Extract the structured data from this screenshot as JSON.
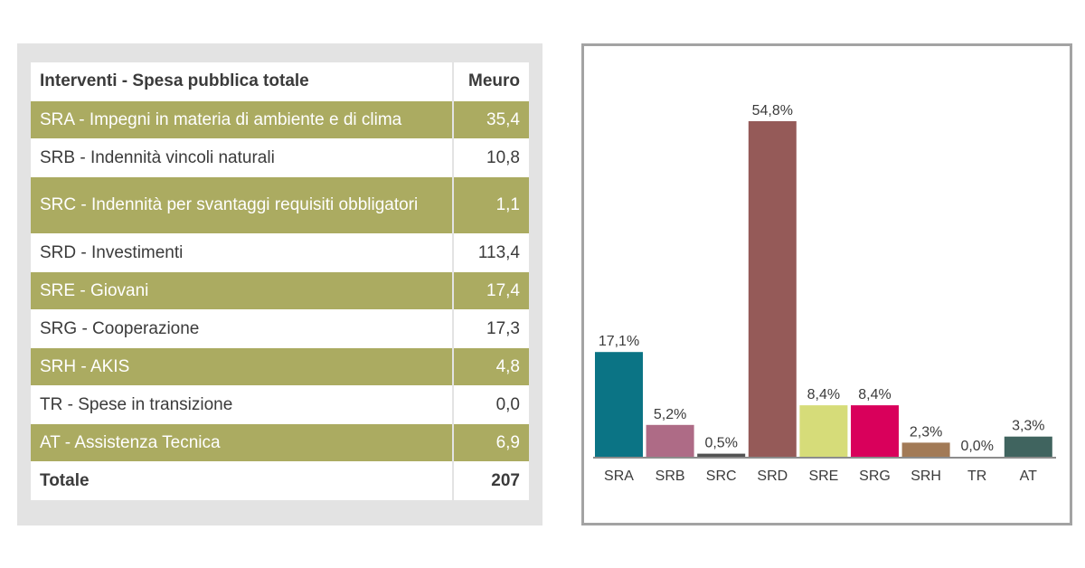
{
  "table": {
    "header": {
      "label": "Interventi - Spesa pubblica totale",
      "unit": "Meuro"
    },
    "rows": [
      {
        "label": "SRA - Impegni in materia di ambiente e di clima",
        "value": "35,4",
        "style": "shade"
      },
      {
        "label": "SRB - Indennità vincoli naturali",
        "value": "10,8",
        "style": "plain"
      },
      {
        "label": "SRC - Indennità per svantaggi requisiti obbligatori",
        "value": "1,1",
        "style": "shade"
      },
      {
        "label": "SRD - Investimenti",
        "value": "113,4",
        "style": "plain"
      },
      {
        "label": "SRE - Giovani",
        "value": "17,4",
        "style": "shade"
      },
      {
        "label": "SRG - Cooperazione",
        "value": "17,3",
        "style": "plain"
      },
      {
        "label": "SRH - AKIS",
        "value": "4,8",
        "style": "shade"
      },
      {
        "label": "TR - Spese in transizione",
        "value": "0,0",
        "style": "plain"
      },
      {
        "label": "AT - Assistenza Tecnica",
        "value": "6,9",
        "style": "shade"
      }
    ],
    "total": {
      "label": "Totale",
      "value": "207"
    },
    "colors": {
      "shade": "#abab61",
      "panel": "#e3e3e3"
    }
  },
  "chart_data": {
    "type": "bar",
    "categories": [
      "SRA",
      "SRB",
      "SRC",
      "SRD",
      "SRE",
      "SRG",
      "SRH",
      "TR",
      "AT"
    ],
    "values": [
      17.1,
      5.2,
      0.5,
      54.8,
      8.4,
      8.4,
      2.3,
      0.0,
      3.3
    ],
    "value_labels": [
      "17,1%",
      "5,2%",
      "0,5%",
      "54,8%",
      "8,4%",
      "8,4%",
      "2,3%",
      "0,0%",
      "3,3%"
    ],
    "colors": [
      "#0b7485",
      "#ae6b86",
      "#525252",
      "#955a58",
      "#d6dc79",
      "#d9005b",
      "#a27a56",
      "#525252",
      "#40645f"
    ],
    "ylim": [
      0,
      54.8
    ],
    "grid": false,
    "legend": "none",
    "title": "",
    "xlabel": "",
    "ylabel": ""
  }
}
